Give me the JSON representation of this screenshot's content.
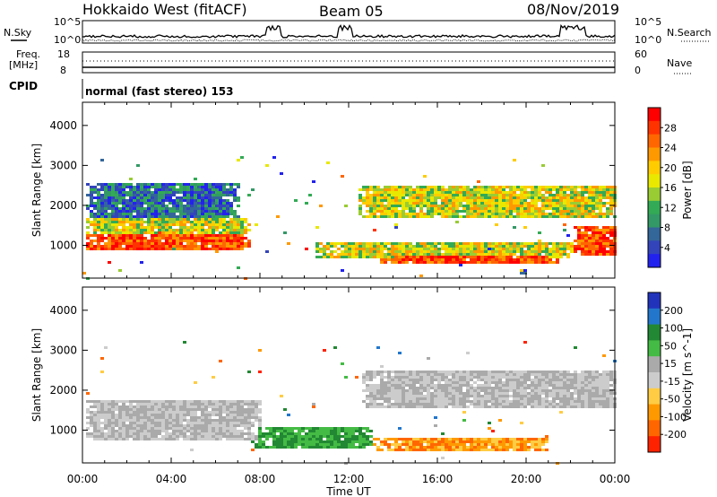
{
  "header": {
    "radar": "Hokkaido West (fitACF)",
    "beam": "Beam 05",
    "date": "08/Nov/2019"
  },
  "noise_panel": {
    "left_label": "N.Sky",
    "right_label": "N.Search",
    "left_ticks": [
      "10^5",
      "10^0"
    ],
    "right_ticks": [
      "10^5",
      "10^0"
    ]
  },
  "freq_panel": {
    "left_label_1": "Freq.",
    "left_label_2": "[MHz]",
    "right_label": "Nave",
    "left_ticks": [
      "18",
      "8"
    ],
    "right_ticks": [
      "60",
      "0"
    ]
  },
  "cpid_panel": {
    "label": "CPID",
    "text": "normal (fast stereo) 153"
  },
  "chart_data": [
    {
      "type": "heatmap",
      "name": "power",
      "ylabel": "Slant Range [km]",
      "xlabel": "",
      "x_ticks": [
        "00:00",
        "04:00",
        "08:00",
        "12:00",
        "16:00",
        "20:00",
        "00:00"
      ],
      "y_ticks": [
        1000,
        2000,
        3000,
        4000
      ],
      "ylim": [
        180,
        4580
      ],
      "xlim_hours": [
        0,
        24
      ],
      "colorbar": {
        "label": "Power [dB]",
        "ticks": [
          "28",
          "24",
          "20",
          "16",
          "12",
          "8",
          "4"
        ],
        "colors": [
          "#ff0000",
          "#ff3300",
          "#ff6600",
          "#ff9900",
          "#ffcc00",
          "#e8e800",
          "#99cc33",
          "#33aa55",
          "#339966",
          "#336699",
          "#3344bb",
          "#2222ee"
        ]
      },
      "regions": [
        {
          "t": [
            0.0,
            0.5,
            7.0,
            7.5
          ],
          "r": [
            900,
            1300
          ],
          "level": "high"
        },
        {
          "t": [
            0.0,
            0.5,
            7.0,
            7.5
          ],
          "r": [
            1300,
            1700
          ],
          "level": "mid"
        },
        {
          "t": [
            0.0,
            1.0,
            6.0,
            7.0
          ],
          "r": [
            1700,
            2600
          ],
          "level": "low"
        },
        {
          "t": [
            12.3,
            13.0,
            24.0,
            24.0
          ],
          "r": [
            1700,
            2500
          ],
          "level": "mid"
        },
        {
          "t": [
            13.0,
            14.0,
            21.0,
            21.5
          ],
          "r": [
            550,
            800
          ],
          "level": "high"
        },
        {
          "t": [
            10.5,
            12.0,
            21.5,
            22.0
          ],
          "r": [
            700,
            1100
          ],
          "level": "mid"
        },
        {
          "t": [
            22.0,
            22.5,
            24.0,
            24.0
          ],
          "r": [
            800,
            1500
          ],
          "level": "high"
        }
      ]
    },
    {
      "type": "heatmap",
      "name": "velocity",
      "ylabel": "Slant Range [km]",
      "xlabel": "Time UT",
      "x_ticks": [
        "00:00",
        "04:00",
        "08:00",
        "12:00",
        "16:00",
        "20:00",
        "00:00"
      ],
      "y_ticks": [
        1000,
        2000,
        3000,
        4000
      ],
      "ylim": [
        180,
        4580
      ],
      "xlim_hours": [
        0,
        24
      ],
      "colorbar": {
        "label": "Velocity [m s^-1]",
        "ticks": [
          "200",
          "100",
          "50",
          "15",
          "-15",
          "-50",
          "-100",
          "-200"
        ],
        "colors": [
          "#2233bb",
          "#2277cc",
          "#228833",
          "#44bb44",
          "#aaaaaa",
          "#cccccc",
          "#ffcc44",
          "#ff9900",
          "#ff6600",
          "#ff2200"
        ]
      },
      "regions": [
        {
          "t": [
            0.0,
            0.5,
            7.5,
            8.0
          ],
          "r": [
            800,
            1800
          ],
          "level": "gray"
        },
        {
          "t": [
            12.5,
            13.0,
            24.0,
            24.0
          ],
          "r": [
            1600,
            2500
          ],
          "level": "gray"
        },
        {
          "t": [
            13.0,
            14.0,
            20.5,
            21.0
          ],
          "r": [
            500,
            850
          ],
          "level": "neg"
        },
        {
          "t": [
            7.5,
            9.0,
            12.5,
            13.0
          ],
          "r": [
            600,
            1100
          ],
          "level": "pos"
        }
      ]
    }
  ]
}
